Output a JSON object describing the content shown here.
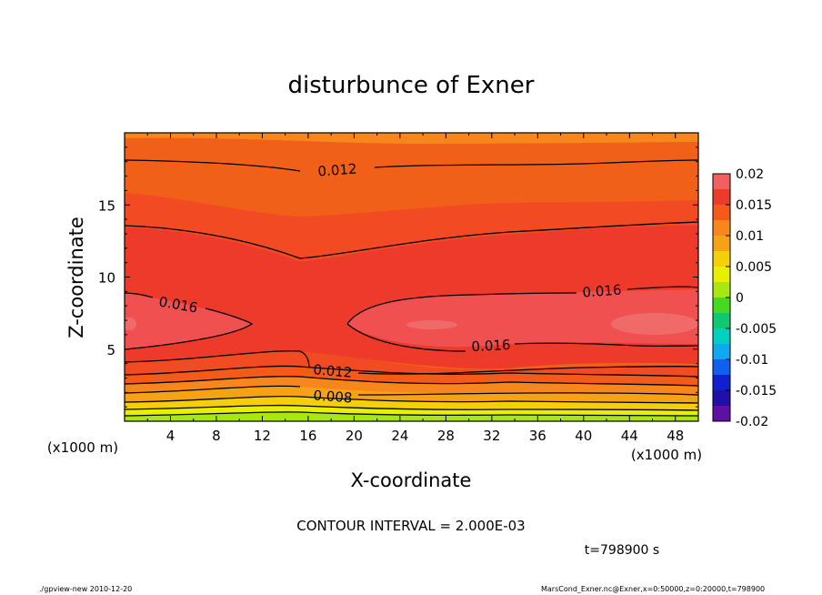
{
  "chart_data": {
    "type": "heatmap",
    "title": "disturbunce of Exner",
    "xlabel": "X-coordinate",
    "ylabel": "Z-coordinate",
    "x_unit": "(x1000 m)",
    "xlim": [
      0,
      50
    ],
    "ylim": [
      0,
      20
    ],
    "x_ticks": [
      "4",
      "8",
      "12",
      "16",
      "20",
      "24",
      "28",
      "32",
      "36",
      "40",
      "44",
      "48"
    ],
    "y_ticks": [
      "5",
      "10",
      "15"
    ],
    "contour_levels": [
      0.0,
      0.002,
      0.004,
      0.006,
      0.008,
      0.01,
      0.012,
      0.014,
      0.016,
      0.018,
      0.02
    ],
    "contour_labels": [
      "0.012",
      "0.016",
      "0.016",
      "0.016",
      "0.012",
      "0.008"
    ],
    "colorbar": {
      "labels": [
        "0.02",
        "0.015",
        "0.01",
        "0.005",
        "0",
        "-0.005",
        "-0.01",
        "-0.015",
        "-0.02"
      ],
      "colors": [
        "#f06060",
        "#ee3a2a",
        "#f45a18",
        "#f7861c",
        "#f5a216",
        "#f5d00a",
        "#e8f000",
        "#a8e810",
        "#48d820",
        "#10c870",
        "#00d0c0",
        "#10a8f0",
        "#1060f0",
        "#1020d0",
        "#2010a8",
        "#6010a0"
      ]
    },
    "contour_interval_text": "CONTOUR INTERVAL = 2.000E-03",
    "time_text": "t=798900 s"
  },
  "footer": {
    "left": "./gpview-new   2010-12-20",
    "right": "MarsCond_Exner.nc@Exner,x=0:50000,z=0:20000,t=798900"
  }
}
